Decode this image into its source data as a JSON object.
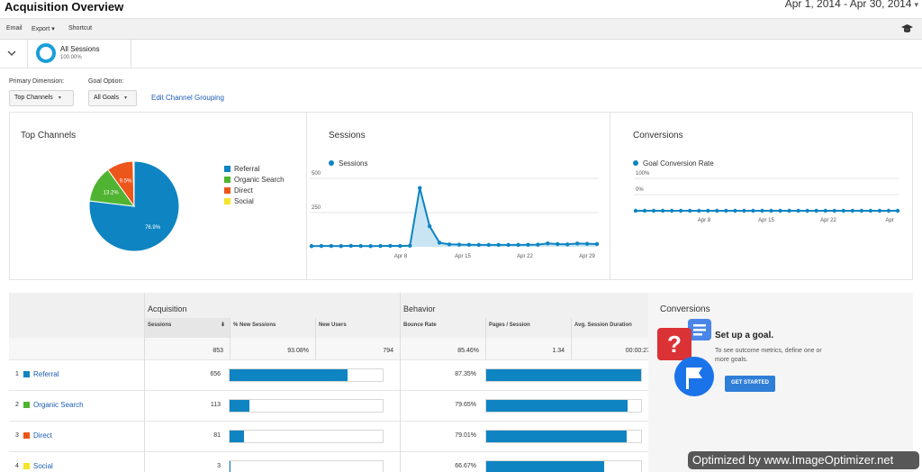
{
  "header": {
    "title": "Acquisition Overview",
    "date_range": "Apr 1, 2014 - Apr 30, 2014"
  },
  "toolbar": {
    "email": "Email",
    "export": "Export",
    "shortcut": "Shortcut"
  },
  "segment": {
    "name": "All Sessions",
    "percent": "100.00%"
  },
  "controls": {
    "primary_dimension_label": "Primary Dimension:",
    "primary_dimension_value": "Top Channels",
    "goal_option_label": "Goal Option:",
    "goal_option_value": "All Goals",
    "edit_link": "Edit Channel Grouping"
  },
  "colors": {
    "referral": "#0e84c2",
    "organic": "#50b432",
    "direct": "#ed561b",
    "social": "#f5e52a",
    "line": "#0e84c2"
  },
  "top_channels": {
    "title": "Top Channels",
    "legend": [
      "Referral",
      "Organic Search",
      "Direct",
      "Social"
    ]
  },
  "sessions_panel": {
    "title": "Sessions",
    "series_label": "Sessions"
  },
  "conversions_panel": {
    "title": "Conversions",
    "series_label": "Goal Conversion Rate"
  },
  "chart_data": [
    {
      "type": "pie",
      "title": "Top Channels",
      "categories": [
        "Referral",
        "Organic Search",
        "Direct",
        "Social"
      ],
      "values": [
        76.9,
        13.2,
        9.5,
        0.4
      ],
      "labels": [
        "76.9%",
        "13.2%",
        "9.5%",
        ""
      ]
    },
    {
      "type": "line",
      "title": "Sessions",
      "x_ticks": [
        "Apr 8",
        "Apr 15",
        "Apr 22",
        "Apr 29"
      ],
      "y_ticks": [
        "500",
        "250"
      ],
      "ylim": [
        0,
        500
      ],
      "x": [
        1,
        2,
        3,
        4,
        5,
        6,
        7,
        8,
        9,
        10,
        11,
        12,
        13,
        14,
        15,
        16,
        17,
        18,
        19,
        20,
        21,
        22,
        23,
        24,
        25,
        26,
        27,
        28,
        29,
        30
      ],
      "values": [
        5,
        6,
        6,
        5,
        7,
        6,
        5,
        6,
        7,
        6,
        8,
        430,
        150,
        30,
        18,
        16,
        15,
        14,
        14,
        14,
        14,
        14,
        15,
        16,
        25,
        20,
        18,
        24,
        22,
        20
      ]
    },
    {
      "type": "line",
      "title": "Goal Conversion Rate",
      "x_ticks": [
        "Apr 8",
        "Apr 15",
        "Apr 22",
        "Apr"
      ],
      "y_ticks": [
        "100%",
        "0%"
      ],
      "ylim": [
        0,
        100
      ],
      "x": [
        1,
        2,
        3,
        4,
        5,
        6,
        7,
        8,
        9,
        10,
        11,
        12,
        13,
        14,
        15,
        16,
        17,
        18,
        19,
        20,
        21,
        22,
        23,
        24,
        25,
        26,
        27,
        28,
        29,
        30
      ],
      "values": [
        0,
        0,
        0,
        0,
        0,
        0,
        0,
        0,
        0,
        0,
        0,
        0,
        0,
        0,
        0,
        0,
        0,
        0,
        0,
        0,
        0,
        0,
        0,
        0,
        0,
        0,
        0,
        0,
        0,
        0
      ]
    }
  ],
  "table": {
    "groups": {
      "acquisition": "Acquisition",
      "behavior": "Behavior",
      "conversions": "Conversions"
    },
    "columns": {
      "sessions": "Sessions",
      "new_sessions": "% New Sessions",
      "new_users": "New Users",
      "bounce_rate": "Bounce Rate",
      "pages_session": "Pages / Session",
      "avg_duration": "Avg. Session Duration"
    },
    "totals": {
      "sessions": "853",
      "new_sessions": "93.08%",
      "new_users": "794",
      "bounce_rate": "85.46%",
      "pages_session": "1.34",
      "avg_duration": "00:00:27"
    },
    "rows": [
      {
        "num": "1",
        "name": "Referral",
        "color": "#0e84c2",
        "sessions": "656",
        "bounce": "87.35%",
        "sessions_fill": 0.769,
        "bounce_fill": 1.0
      },
      {
        "num": "2",
        "name": "Organic Search",
        "color": "#50b432",
        "sessions": "113",
        "bounce": "79.65%",
        "sessions_fill": 0.132,
        "bounce_fill": 0.91
      },
      {
        "num": "3",
        "name": "Direct",
        "color": "#ed561b",
        "sessions": "81",
        "bounce": "79.01%",
        "sessions_fill": 0.095,
        "bounce_fill": 0.905
      },
      {
        "num": "4",
        "name": "Social",
        "color": "#f5e52a",
        "sessions": "3",
        "bounce": "66.67%",
        "sessions_fill": 0.004,
        "bounce_fill": 0.763
      }
    ]
  },
  "goal_cta": {
    "title": "Set up a goal.",
    "description": "To see outcome metrics, define one or more goals.",
    "button": "GET STARTED"
  },
  "watermark": "Optimized by www.ImageOptimizer.net"
}
